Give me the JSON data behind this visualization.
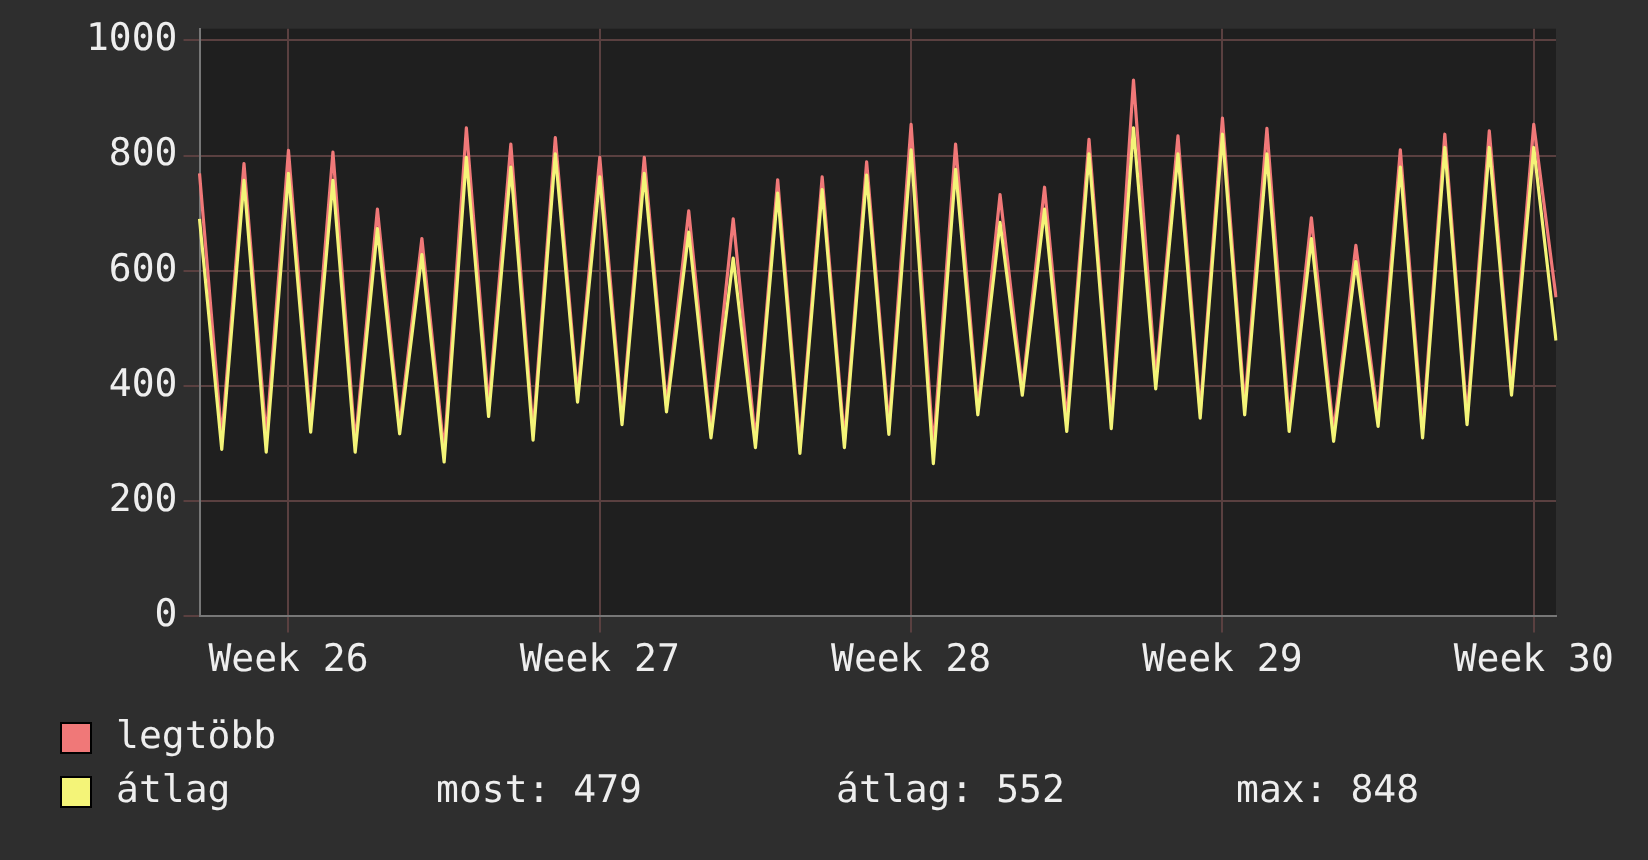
{
  "chart_data": {
    "type": "line",
    "categories": [
      null,
      null,
      null,
      null,
      "Week 26",
      null,
      null,
      null,
      null,
      null,
      null,
      null,
      null,
      null,
      null,
      null,
      null,
      null,
      "Week 27",
      null,
      null,
      null,
      null,
      null,
      null,
      null,
      null,
      null,
      null,
      null,
      null,
      null,
      "Week 28",
      null,
      null,
      null,
      null,
      null,
      null,
      null,
      null,
      null,
      null,
      null,
      null,
      null,
      "Week 29",
      null,
      null,
      null,
      null,
      null,
      null,
      null,
      null,
      null,
      null,
      null,
      null,
      null,
      "Week 30",
      null
    ],
    "series": [
      {
        "name": "legtöbb",
        "color": "#f07878",
        "values": [
          769,
          310,
          786,
          310,
          809,
          335,
          806,
          300,
          707,
          330,
          656,
          285,
          848,
          365,
          820,
          320,
          831,
          383,
          797,
          345,
          797,
          365,
          704,
          320,
          690,
          305,
          758,
          295,
          763,
          305,
          789,
          330,
          854,
          290,
          820,
          360,
          732,
          395,
          745,
          340,
          828,
          340,
          931,
          410,
          834,
          355,
          865,
          365,
          847,
          340,
          692,
          320,
          644,
          345,
          810,
          325,
          837,
          345,
          843,
          395,
          854,
          554
        ]
      },
      {
        "name": "átlag",
        "color": "#f4f478",
        "values": [
          690,
          290,
          757,
          285,
          769,
          320,
          757,
          285,
          673,
          317,
          628,
          268,
          797,
          347,
          780,
          306,
          803,
          372,
          763,
          333,
          769,
          355,
          667,
          310,
          622,
          293,
          735,
          283,
          741,
          293,
          766,
          316,
          810,
          265,
          776,
          350,
          684,
          384,
          707,
          321,
          803,
          326,
          848,
          395,
          803,
          344,
          837,
          350,
          803,
          321,
          656,
          304,
          616,
          330,
          780,
          310,
          814,
          333,
          814,
          384,
          814,
          479
        ]
      }
    ],
    "ylim": [
      0,
      1020
    ],
    "yticks": [
      0,
      200,
      400,
      600,
      800,
      1000
    ],
    "grid": true,
    "legend": "bottom left",
    "marker": "none",
    "line_style": "solid",
    "annotations": [
      "most: 479",
      "átlag: 552",
      "max: 848"
    ]
  }
}
